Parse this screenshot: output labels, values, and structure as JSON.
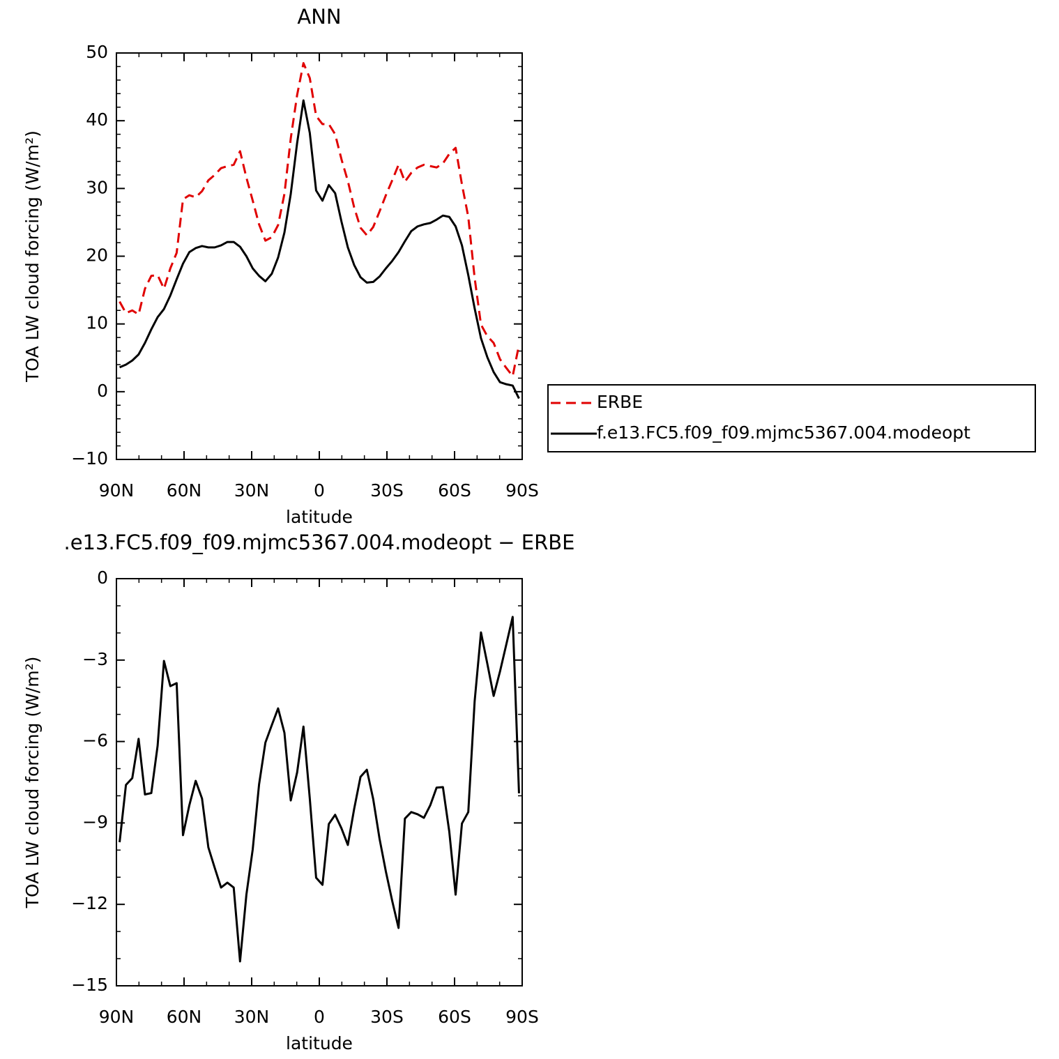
{
  "chart_data": [
    {
      "type": "line",
      "title": "ANN",
      "xlabel": "latitude",
      "ylabel": "TOA LW cloud forcing (W/m²)",
      "x": [
        88.59,
        85.78,
        82.97,
        80.16,
        77.34,
        74.53,
        71.72,
        68.91,
        66.09,
        63.28,
        60.47,
        57.66,
        54.84,
        52.03,
        49.22,
        46.41,
        43.59,
        40.78,
        37.97,
        35.16,
        32.34,
        29.53,
        26.72,
        23.91,
        21.09,
        18.28,
        15.47,
        12.66,
        9.84,
        7.03,
        4.22,
        1.41,
        -1.41,
        -4.22,
        -7.03,
        -9.84,
        -12.66,
        -15.47,
        -18.28,
        -21.09,
        -23.91,
        -26.72,
        -29.53,
        -32.34,
        -35.16,
        -37.97,
        -40.78,
        -43.59,
        -46.41,
        -49.22,
        -52.03,
        -54.84,
        -57.66,
        -60.47,
        -63.28,
        -66.09,
        -68.91,
        -71.72,
        -74.53,
        -77.34,
        -80.16,
        -82.97,
        -85.78,
        -88.59
      ],
      "series": [
        {
          "name": "ERBE",
          "color": "#e00000",
          "dashed": true,
          "values": [
            13.3,
            11.6,
            12.0,
            11.4,
            15.2,
            17.1,
            17.2,
            15.2,
            18.2,
            20.5,
            28.4,
            29.0,
            28.7,
            29.6,
            31.2,
            32.0,
            33.0,
            33.3,
            33.5,
            35.5,
            31.6,
            28.2,
            24.7,
            22.3,
            22.8,
            24.6,
            29.2,
            37.4,
            43.8,
            48.5,
            46.3,
            40.7,
            39.5,
            39.5,
            38.0,
            34.3,
            31.1,
            27.2,
            24.2,
            23.1,
            24.3,
            26.6,
            29.0,
            31.2,
            33.5,
            31.0,
            32.3,
            33.1,
            33.5,
            33.3,
            33.1,
            33.7,
            35.1,
            36.0,
            30.6,
            25.8,
            16.8,
            9.9,
            8.2,
            7.2,
            4.8,
            3.5,
            2.3,
            6.9
          ]
        },
        {
          "name": "f.e13.FC5.f09_f09.mjmc5367.004.modeopt",
          "color": "#000000",
          "dashed": false,
          "values": [
            3.6,
            4.0,
            4.6,
            5.5,
            7.2,
            9.2,
            11.0,
            12.2,
            14.2,
            16.6,
            18.9,
            20.6,
            21.2,
            21.5,
            21.3,
            21.3,
            21.6,
            22.1,
            22.1,
            21.4,
            20.0,
            18.2,
            17.1,
            16.3,
            17.4,
            19.8,
            23.5,
            29.2,
            36.7,
            43.0,
            38.2,
            29.7,
            28.2,
            30.5,
            29.3,
            25.1,
            21.3,
            18.7,
            16.9,
            16.1,
            16.2,
            17.0,
            18.2,
            19.3,
            20.6,
            22.2,
            23.7,
            24.4,
            24.7,
            24.9,
            25.4,
            26.0,
            25.8,
            24.4,
            21.6,
            17.2,
            12.3,
            7.9,
            5.1,
            2.9,
            1.4,
            1.1,
            0.9,
            -1.0
          ]
        }
      ],
      "xlim": [
        90,
        -90
      ],
      "xticks": [
        {
          "value": 90,
          "label": "90N"
        },
        {
          "value": 60,
          "label": "60N"
        },
        {
          "value": 30,
          "label": "30N"
        },
        0,
        {
          "value": -30,
          "label": "30S"
        },
        {
          "value": -60,
          "label": "60S"
        },
        {
          "value": -90,
          "label": "90S"
        }
      ],
      "xminorticks": [
        80,
        70,
        50,
        40,
        20,
        10,
        -10,
        -20,
        -40,
        -50,
        -70,
        -80
      ],
      "ylim": [
        -10,
        50
      ],
      "yticks": [
        {
          "value": -10,
          "label": "−10"
        },
        0,
        10,
        20,
        30,
        40,
        50
      ],
      "yminorticks": [
        -8,
        -6,
        -4,
        -2,
        2,
        4,
        6,
        8,
        12,
        14,
        16,
        18,
        22,
        24,
        26,
        28,
        32,
        34,
        36,
        38,
        42,
        44,
        46,
        48
      ],
      "legend": "right"
    },
    {
      "type": "line",
      "title": ".e13.FC5.f09_f09.mjmc5367.004.modeopt − ERBE",
      "xlabel": "latitude",
      "ylabel": "TOA LW cloud forcing (W/m²)",
      "x": [
        88.59,
        85.78,
        82.97,
        80.16,
        77.34,
        74.53,
        71.72,
        68.91,
        66.09,
        63.28,
        60.47,
        57.66,
        54.84,
        52.03,
        49.22,
        46.41,
        43.59,
        40.78,
        37.97,
        35.16,
        32.34,
        29.53,
        26.72,
        23.91,
        21.09,
        18.28,
        15.47,
        12.66,
        9.84,
        7.03,
        4.22,
        1.41,
        -1.41,
        -4.22,
        -7.03,
        -9.84,
        -12.66,
        -15.47,
        -18.28,
        -21.09,
        -23.91,
        -26.72,
        -29.53,
        -32.34,
        -35.16,
        -37.97,
        -40.78,
        -43.59,
        -46.41,
        -49.22,
        -52.03,
        -54.84,
        -57.66,
        -60.47,
        -63.28,
        -66.09,
        -68.91,
        -71.72,
        -74.53,
        -77.34,
        -80.16,
        -82.97,
        -85.78,
        -88.59
      ],
      "series": [
        {
          "color": "#000000",
          "dashed": false,
          "values": [
            -9.71,
            -7.6,
            -7.35,
            -5.9,
            -7.95,
            -7.9,
            -6.15,
            -3.03,
            -3.96,
            -3.85,
            -9.45,
            -8.35,
            -7.45,
            -8.1,
            -9.9,
            -10.65,
            -11.38,
            -11.2,
            -11.38,
            -14.1,
            -11.64,
            -9.97,
            -7.58,
            -6.04,
            -5.4,
            -4.78,
            -5.68,
            -8.17,
            -7.14,
            -5.45,
            -8.1,
            -11.02,
            -11.28,
            -9.04,
            -8.7,
            -9.2,
            -9.81,
            -8.48,
            -7.3,
            -7.04,
            -8.12,
            -9.58,
            -10.79,
            -11.87,
            -12.87,
            -8.84,
            -8.6,
            -8.68,
            -8.81,
            -8.35,
            -7.7,
            -7.68,
            -9.32,
            -11.64,
            -9.02,
            -8.6,
            -4.52,
            -1.98,
            -3.13,
            -4.32,
            -3.42,
            -2.42,
            -1.41,
            -7.91
          ]
        }
      ],
      "xlim": [
        90,
        -90
      ],
      "xticks": [
        {
          "value": 90,
          "label": "90N"
        },
        {
          "value": 60,
          "label": "60N"
        },
        {
          "value": 30,
          "label": "30N"
        },
        0,
        {
          "value": -30,
          "label": "30S"
        },
        {
          "value": -60,
          "label": "60S"
        },
        {
          "value": -90,
          "label": "90S"
        }
      ],
      "xminorticks": [
        80,
        70,
        50,
        40,
        20,
        10,
        -10,
        -20,
        -40,
        -50,
        -70,
        -80
      ],
      "ylim": [
        -15,
        0
      ],
      "yticks": [
        {
          "value": -15,
          "label": "−15"
        },
        {
          "value": -12,
          "label": "−12"
        },
        {
          "value": -9,
          "label": "−9"
        },
        {
          "value": -6,
          "label": "−6"
        },
        {
          "value": -3,
          "label": "−3"
        },
        0
      ],
      "yminorticks": [
        -14,
        -13,
        -11,
        -10,
        -8,
        -7,
        -5,
        -4,
        -2,
        -1
      ]
    }
  ]
}
